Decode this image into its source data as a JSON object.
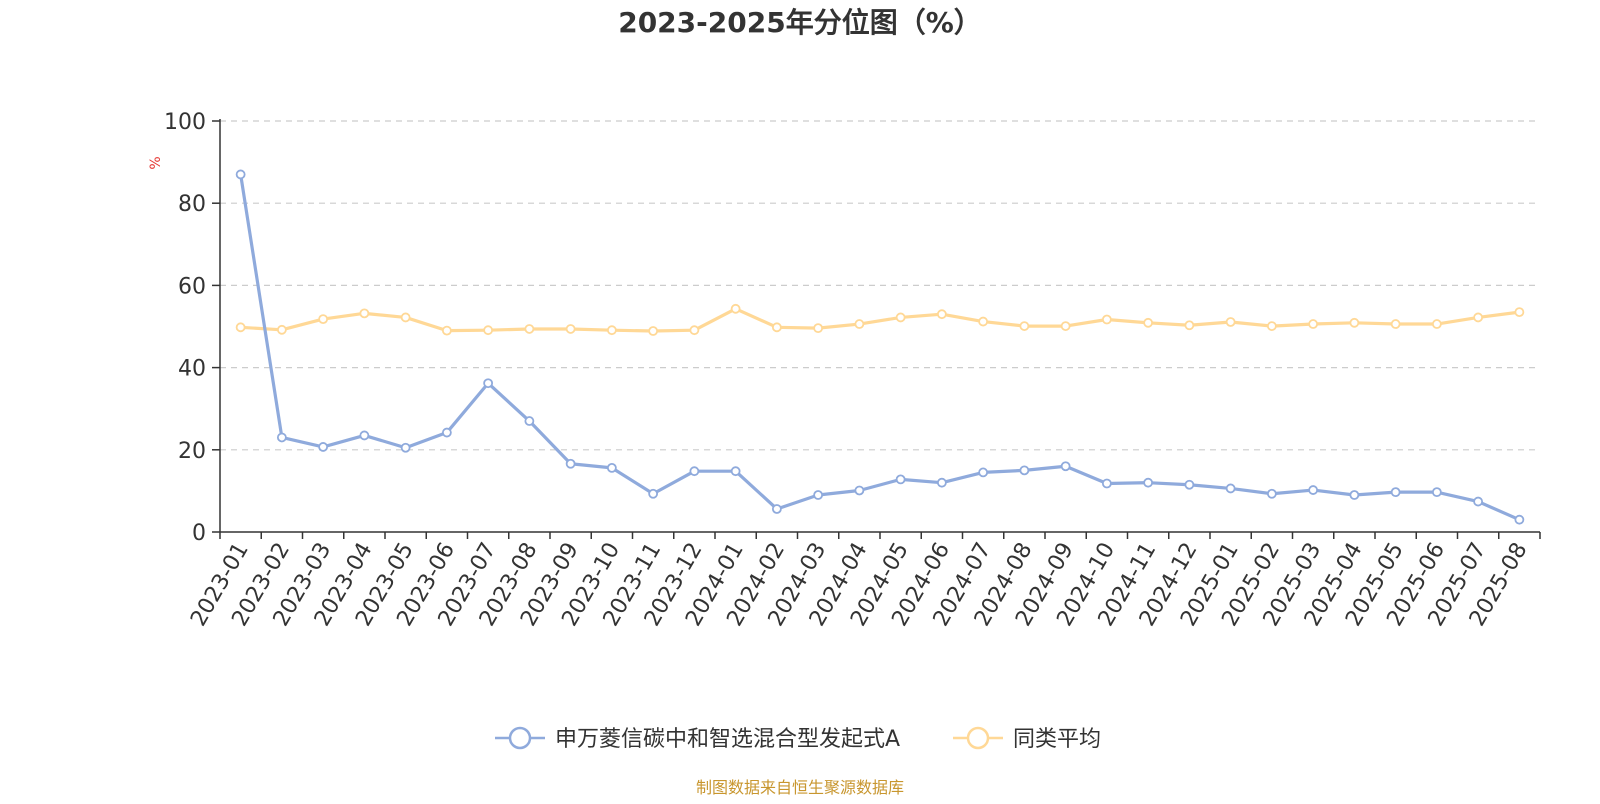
{
  "title": "2023-2025年分位图（%）",
  "source_note": "制图数据来自恒生聚源数据库",
  "chart_data": {
    "type": "line",
    "title": "2023-2025年分位图（%）",
    "ylabel": "%",
    "xlabel": "",
    "ylim": [
      0,
      100
    ],
    "yticks": [
      0,
      20,
      40,
      60,
      80,
      100
    ],
    "grid": true,
    "legend_position": "bottom",
    "categories": [
      "2023-01",
      "2023-02",
      "2023-03",
      "2023-04",
      "2023-05",
      "2023-06",
      "2023-07",
      "2023-08",
      "2023-09",
      "2023-10",
      "2023-11",
      "2023-12",
      "2024-01",
      "2024-02",
      "2024-03",
      "2024-04",
      "2024-05",
      "2024-06",
      "2024-07",
      "2024-08",
      "2024-09",
      "2024-10",
      "2024-11",
      "2024-12",
      "2025-01",
      "2025-02",
      "2025-03",
      "2025-04",
      "2025-05",
      "2025-06",
      "2025-07",
      "2025-08"
    ],
    "series": [
      {
        "name": "申万菱信碳中和智选混合型发起式A",
        "color": "#8faadc",
        "values": [
          87,
          23,
          20.7,
          23.5,
          20.5,
          24.2,
          36.2,
          27,
          16.6,
          15.6,
          9.3,
          14.8,
          14.8,
          5.6,
          9,
          10.1,
          12.8,
          12,
          14.5,
          15,
          16,
          11.8,
          12,
          11.5,
          10.6,
          9.3,
          10.2,
          9,
          9.7,
          9.7,
          7.4,
          3
        ]
      },
      {
        "name": "同类平均",
        "color": "#ffd896",
        "values": [
          49.8,
          49.2,
          51.8,
          53.2,
          52.2,
          49,
          49.1,
          49.4,
          49.4,
          49.1,
          48.9,
          49.1,
          54.3,
          49.8,
          49.6,
          50.6,
          52.2,
          53,
          51.2,
          50.1,
          50.1,
          51.7,
          50.9,
          50.3,
          51.1,
          50.1,
          50.6,
          50.9,
          50.6,
          50.6,
          52.2,
          53.5
        ]
      }
    ]
  }
}
